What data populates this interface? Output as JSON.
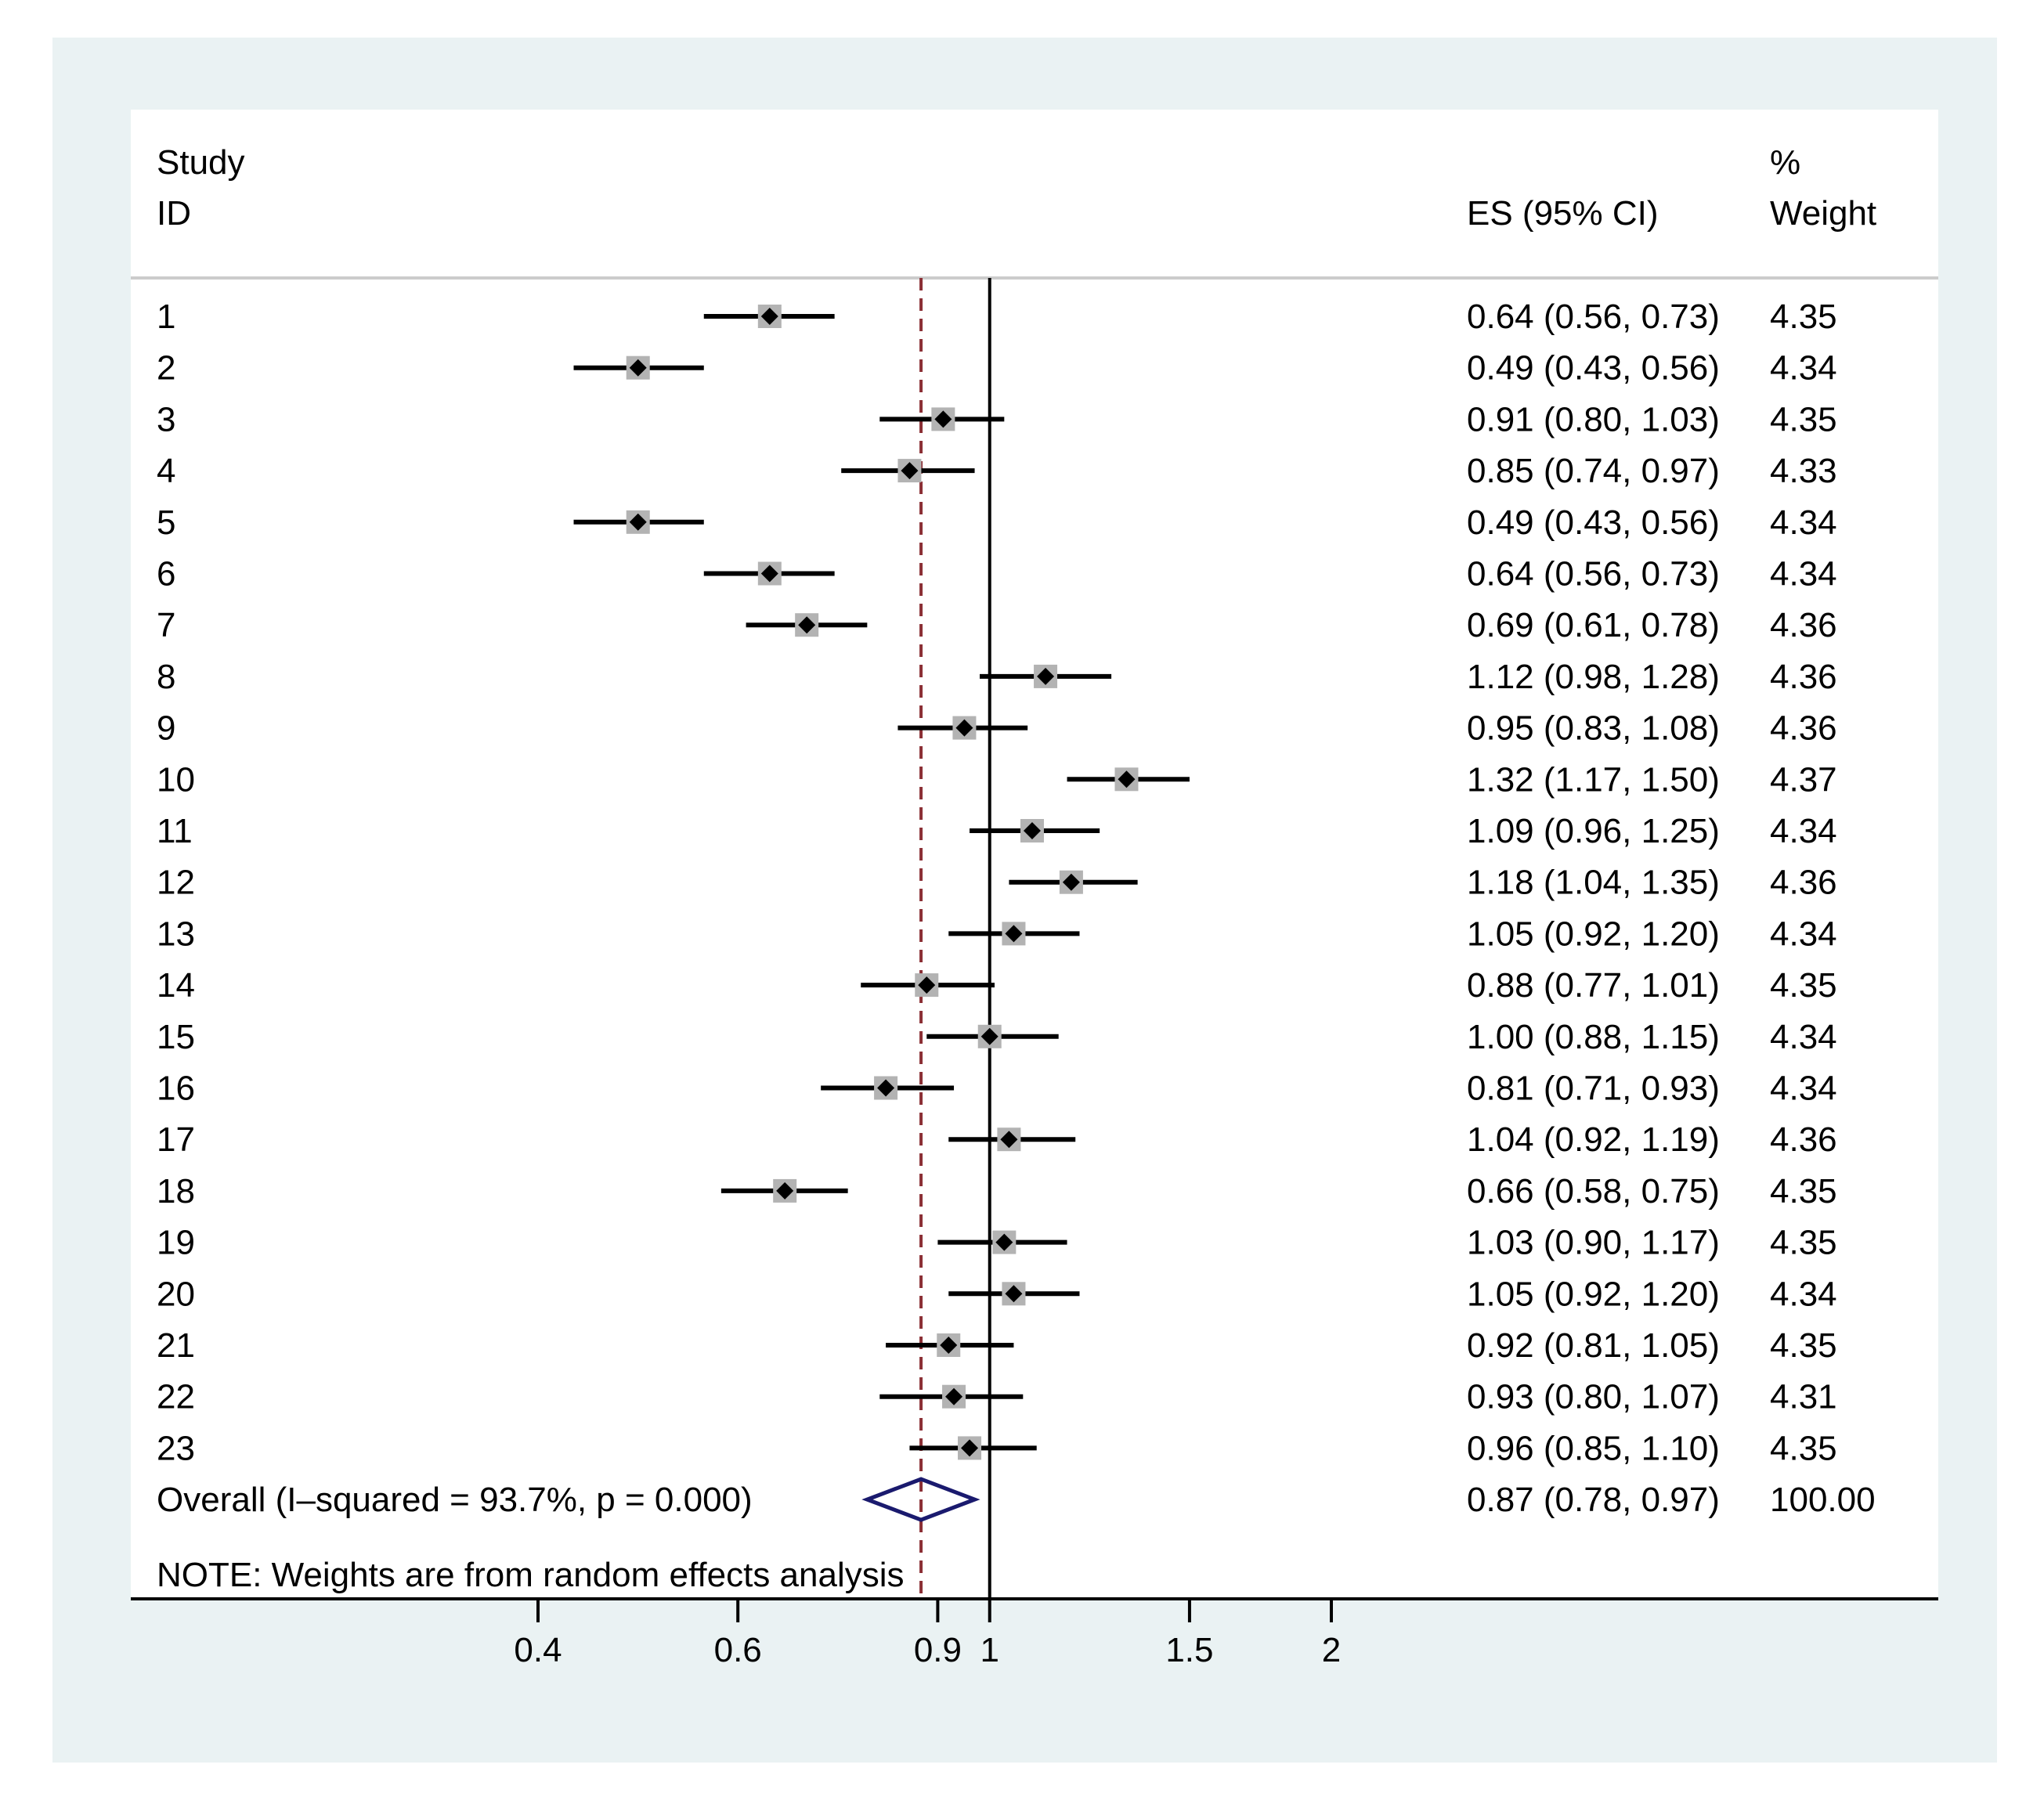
{
  "chart_data": {
    "type": "forest",
    "header": {
      "col1_line1": "Study",
      "col1_line2": "ID",
      "es_header": "ES (95% CI)",
      "weight_line1": "%",
      "weight_line2": "Weight"
    },
    "x_scale": "log",
    "x_ticks": [
      {
        "value": 0.4,
        "label": "0.4"
      },
      {
        "value": 0.6,
        "label": "0.6"
      },
      {
        "value": 0.9,
        "label": "0.9"
      },
      {
        "value": 1,
        "label": "1"
      },
      {
        "value": 1.5,
        "label": "1.5"
      },
      {
        "value": 2,
        "label": "2"
      }
    ],
    "null_line": 1,
    "overall_line": 0.87,
    "studies": [
      {
        "id": "1",
        "es": 0.64,
        "lo": 0.56,
        "hi": 0.73,
        "ci_text": "0.64 (0.56, 0.73)",
        "weight": "4.35"
      },
      {
        "id": "2",
        "es": 0.49,
        "lo": 0.43,
        "hi": 0.56,
        "ci_text": "0.49 (0.43, 0.56)",
        "weight": "4.34"
      },
      {
        "id": "3",
        "es": 0.91,
        "lo": 0.8,
        "hi": 1.03,
        "ci_text": "0.91 (0.80, 1.03)",
        "weight": "4.35"
      },
      {
        "id": "4",
        "es": 0.85,
        "lo": 0.74,
        "hi": 0.97,
        "ci_text": "0.85 (0.74, 0.97)",
        "weight": "4.33"
      },
      {
        "id": "5",
        "es": 0.49,
        "lo": 0.43,
        "hi": 0.56,
        "ci_text": "0.49 (0.43, 0.56)",
        "weight": "4.34"
      },
      {
        "id": "6",
        "es": 0.64,
        "lo": 0.56,
        "hi": 0.73,
        "ci_text": "0.64 (0.56, 0.73)",
        "weight": "4.34"
      },
      {
        "id": "7",
        "es": 0.69,
        "lo": 0.61,
        "hi": 0.78,
        "ci_text": "0.69 (0.61, 0.78)",
        "weight": "4.36"
      },
      {
        "id": "8",
        "es": 1.12,
        "lo": 0.98,
        "hi": 1.28,
        "ci_text": "1.12 (0.98, 1.28)",
        "weight": "4.36"
      },
      {
        "id": "9",
        "es": 0.95,
        "lo": 0.83,
        "hi": 1.08,
        "ci_text": "0.95 (0.83, 1.08)",
        "weight": "4.36"
      },
      {
        "id": "10",
        "es": 1.32,
        "lo": 1.17,
        "hi": 1.5,
        "ci_text": "1.32 (1.17, 1.50)",
        "weight": "4.37"
      },
      {
        "id": "11",
        "es": 1.09,
        "lo": 0.96,
        "hi": 1.25,
        "ci_text": "1.09 (0.96, 1.25)",
        "weight": "4.34"
      },
      {
        "id": "12",
        "es": 1.18,
        "lo": 1.04,
        "hi": 1.35,
        "ci_text": "1.18 (1.04, 1.35)",
        "weight": "4.36"
      },
      {
        "id": "13",
        "es": 1.05,
        "lo": 0.92,
        "hi": 1.2,
        "ci_text": "1.05 (0.92, 1.20)",
        "weight": "4.34"
      },
      {
        "id": "14",
        "es": 0.88,
        "lo": 0.77,
        "hi": 1.01,
        "ci_text": "0.88 (0.77, 1.01)",
        "weight": "4.35"
      },
      {
        "id": "15",
        "es": 1.0,
        "lo": 0.88,
        "hi": 1.15,
        "ci_text": "1.00 (0.88, 1.15)",
        "weight": "4.34"
      },
      {
        "id": "16",
        "es": 0.81,
        "lo": 0.71,
        "hi": 0.93,
        "ci_text": "0.81 (0.71, 0.93)",
        "weight": "4.34"
      },
      {
        "id": "17",
        "es": 1.04,
        "lo": 0.92,
        "hi": 1.19,
        "ci_text": "1.04 (0.92, 1.19)",
        "weight": "4.36"
      },
      {
        "id": "18",
        "es": 0.66,
        "lo": 0.58,
        "hi": 0.75,
        "ci_text": "0.66 (0.58, 0.75)",
        "weight": "4.35"
      },
      {
        "id": "19",
        "es": 1.03,
        "lo": 0.9,
        "hi": 1.17,
        "ci_text": "1.03 (0.90, 1.17)",
        "weight": "4.35"
      },
      {
        "id": "20",
        "es": 1.05,
        "lo": 0.92,
        "hi": 1.2,
        "ci_text": "1.05 (0.92, 1.20)",
        "weight": "4.34"
      },
      {
        "id": "21",
        "es": 0.92,
        "lo": 0.81,
        "hi": 1.05,
        "ci_text": "0.92 (0.81, 1.05)",
        "weight": "4.35"
      },
      {
        "id": "22",
        "es": 0.93,
        "lo": 0.8,
        "hi": 1.07,
        "ci_text": "0.93 (0.80, 1.07)",
        "weight": "4.31"
      },
      {
        "id": "23",
        "es": 0.96,
        "lo": 0.85,
        "hi": 1.1,
        "ci_text": "0.96 (0.85, 1.10)",
        "weight": "4.35"
      }
    ],
    "overall": {
      "label": "Overall  (I–squared = 93.7%, p = 0.000)",
      "es": 0.87,
      "lo": 0.78,
      "hi": 0.97,
      "ci_text": "0.87 (0.78, 0.97)",
      "weight": "100.00"
    },
    "note": "NOTE: Weights are from random effects analysis",
    "colors": {
      "background": "#eaf2f3",
      "plot_bg": "#ffffff",
      "ci_line": "#000000",
      "box": "#b3b3b3",
      "point": "#000000",
      "overall_line": "#8b2f35",
      "diamond": "#1a1a6e",
      "separator": "#cccccc"
    }
  }
}
